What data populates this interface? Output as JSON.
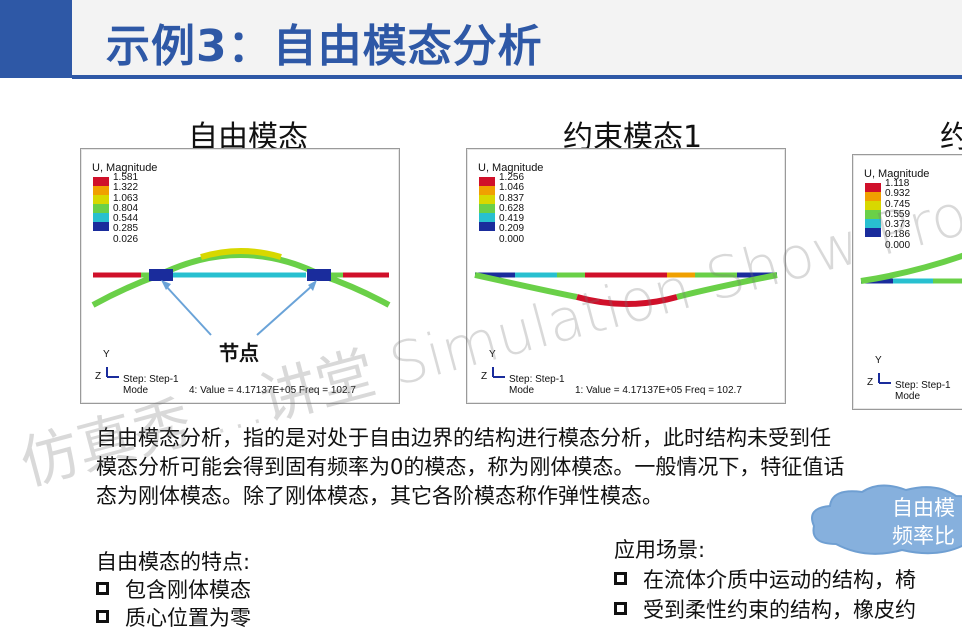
{
  "header": {
    "title": "示例3：自由模态分析"
  },
  "panels": [
    {
      "title": "自由模态",
      "legend_title": "U, Magnitude",
      "legend_values": [
        "1.581",
        "1.322",
        "1.063",
        "0.804",
        "0.544",
        "0.285",
        "0.026"
      ],
      "axis_y": "Y",
      "axis_z": "Z",
      "step": "Step: Step-1",
      "mode_label": "Mode",
      "mode_value": "4: Value =  4.17137E+05 Freq =    102.7",
      "node_label": "节点"
    },
    {
      "title": "约束模态1",
      "legend_title": "U, Magnitude",
      "legend_values": [
        "1.256",
        "1.046",
        "0.837",
        "0.628",
        "0.419",
        "0.209",
        "0.000"
      ],
      "axis_y": "Y",
      "axis_z": "Z",
      "step": "Step: Step-1",
      "mode_label": "Mode",
      "mode_value": "1: Value =  4.17137E+05 Freq =    102.7"
    },
    {
      "title": "约",
      "legend_title": "U, Magnitude",
      "legend_values": [
        "1.118",
        "0.932",
        "0.745",
        "0.559",
        "0.373",
        "0.186",
        "0.000"
      ],
      "axis_y": "Y",
      "axis_z": "Z",
      "step": "Step: Step-1",
      "mode_label": "Mode"
    }
  ],
  "legend_colors": [
    "#d0102a",
    "#f0a000",
    "#d8d800",
    "#6ad048",
    "#28c0d0",
    "#2080e0",
    "#1a2c9c"
  ],
  "paragraph": {
    "line1": "自由模态分析，指的是对处于自由边界的结构进行模态分析，此时结构未受到任",
    "line2": "模态分析可能会得到固有频率为0的模态，称为刚体模态。一般情况下，特征值话",
    "line3": "态为刚体模态。除了刚体模态，其它各阶模态称作弹性模态。"
  },
  "features": {
    "title": "自由模态的特点:",
    "items": [
      "包含刚体模态",
      "质心位置为零"
    ]
  },
  "applications": {
    "title": "应用场景:",
    "items": [
      "在流体介质中运动的结构，椅",
      "受到柔性约束的结构，橡皮约"
    ]
  },
  "callout": {
    "line1": "自由模",
    "line2": "频率比"
  },
  "watermark": "仿真秀 ...讲堂 Simulation Show Pro"
}
